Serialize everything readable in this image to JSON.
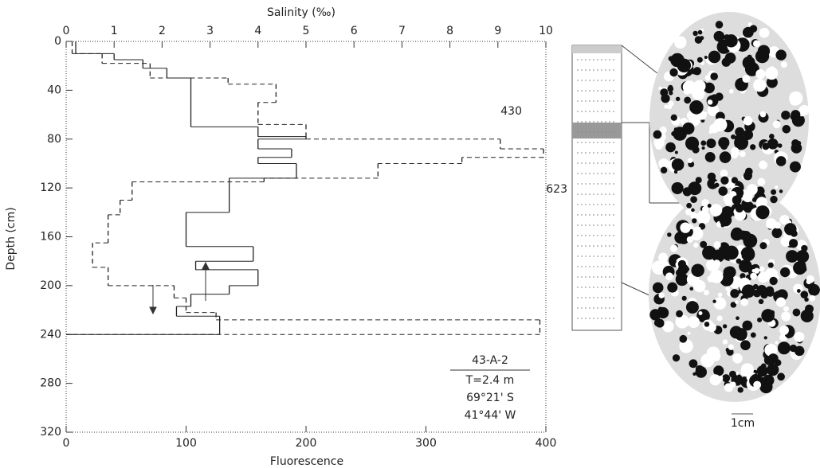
{
  "chart_data": {
    "type": "step-profile",
    "x_top_label": "Salinity (‰)",
    "x_bottom_label": "Fluorescence",
    "y_label": "Depth (cm)",
    "xlim_top": [
      0,
      10
    ],
    "xticks_top": [
      0,
      1,
      2,
      3,
      4,
      5,
      6,
      7,
      8,
      9,
      10
    ],
    "xlim": [
      0,
      400
    ],
    "xticks": [
      0,
      100,
      200,
      300,
      400
    ],
    "ylim": [
      320,
      0
    ],
    "yticks": [
      0,
      40,
      80,
      120,
      160,
      200,
      240,
      280,
      320
    ],
    "series": [
      {
        "color": "#222",
        "dash": false,
        "axis": "x_top",
        "bins": [
          0,
          10,
          15,
          22,
          30,
          70,
          78,
          80,
          88,
          95,
          100,
          112,
          140,
          168,
          180,
          187,
          200,
          207,
          217,
          225,
          240
        ],
        "values": [
          0.2,
          1.0,
          1.6,
          2.1,
          2.6,
          4.0,
          5.0,
          4.0,
          4.7,
          4.0,
          4.8,
          3.4,
          2.5,
          3.9,
          2.7,
          4.0,
          3.4,
          2.6,
          2.3,
          3.2
        ]
      },
      {
        "color": "#222",
        "dash": true,
        "axis": "x",
        "bins": [
          0,
          10,
          18,
          30,
          35,
          50,
          68,
          80,
          88,
          95,
          100,
          112,
          115,
          130,
          142,
          165,
          185,
          200,
          210,
          222,
          228,
          240
        ],
        "values": [
          5,
          30,
          70,
          135,
          175,
          160,
          200,
          362,
          398,
          330,
          260,
          165,
          55,
          45,
          35,
          22,
          35,
          90,
          100,
          125,
          395
        ]
      }
    ],
    "annotations": [
      "430",
      "623"
    ],
    "station": {
      "id": "43-A-2",
      "thickness": "T=2.4 m",
      "lat": "69°21' S",
      "lon": "41°44' W"
    },
    "scale_label": "1cm"
  }
}
